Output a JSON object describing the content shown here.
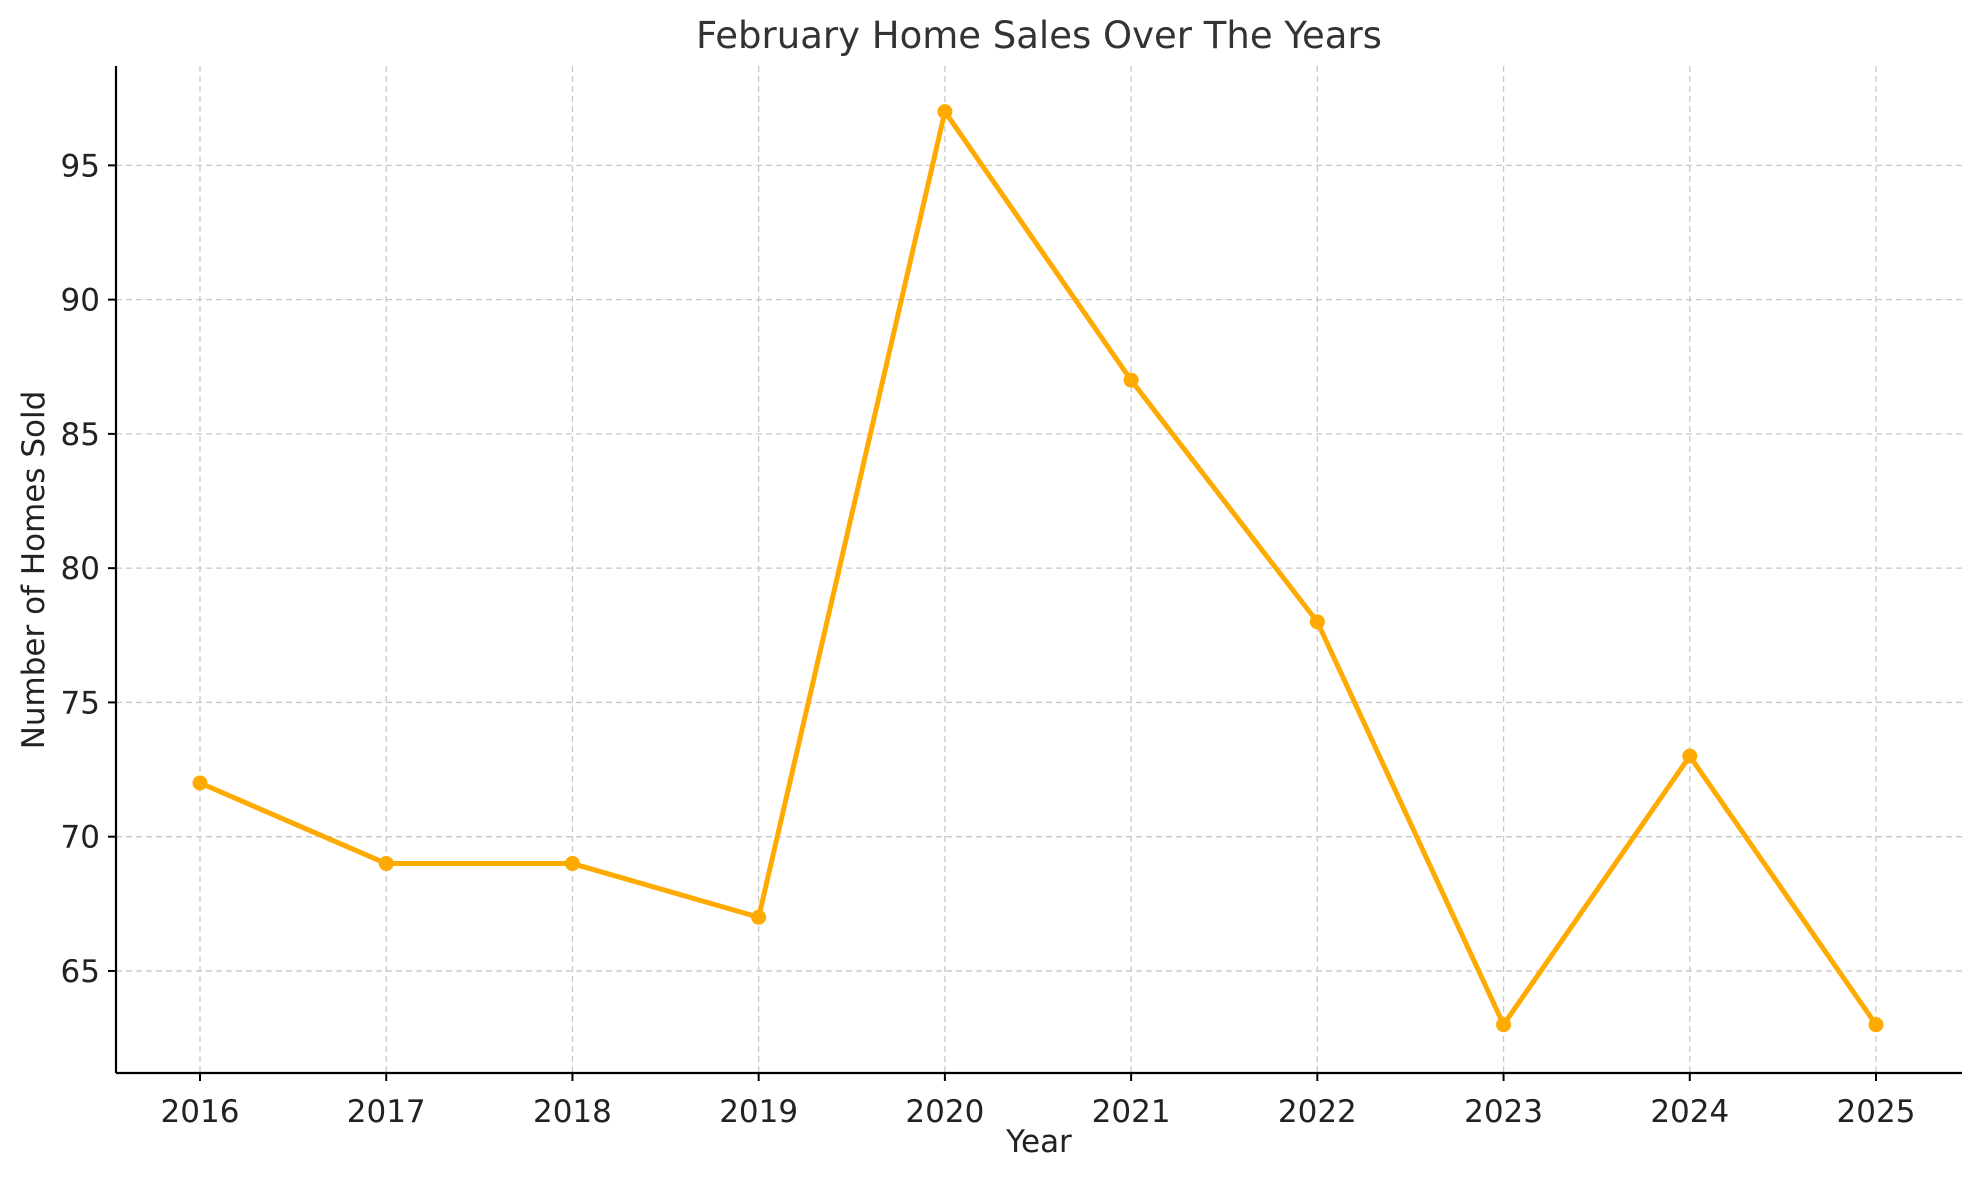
{
  "chart_data": {
    "type": "line",
    "title": "February Home Sales Over The Years",
    "xlabel": "Year",
    "ylabel": "Number of Homes Sold",
    "x": [
      "2016",
      "2017",
      "2018",
      "2019",
      "2020",
      "2021",
      "2022",
      "2023",
      "2024",
      "2025"
    ],
    "series": [
      {
        "values": [
          72,
          69,
          69,
          67,
          97,
          87,
          78,
          63,
          73,
          63
        ],
        "color": "#FFAA00",
        "marker": "circle"
      }
    ],
    "yticks": [
      65,
      70,
      75,
      80,
      85,
      90,
      95
    ],
    "ylim": [
      61.2,
      98.7
    ],
    "grid": true,
    "grid_style": "dashed",
    "legend": "none"
  }
}
